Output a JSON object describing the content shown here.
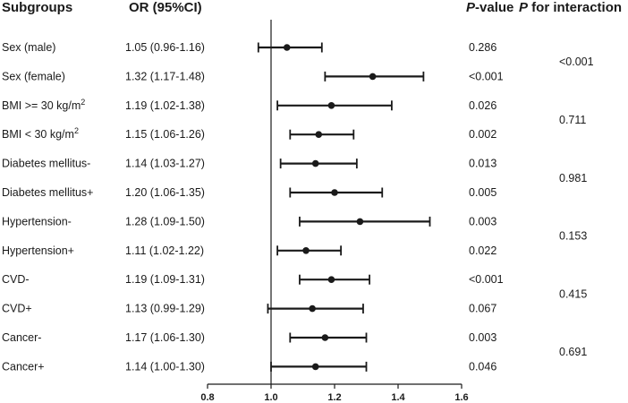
{
  "headers": {
    "subgroups": "Subgroups",
    "or": "OR (95%CI)",
    "pvalue_italic": "P",
    "pvalue_rest": "-value",
    "interaction_italic": "P",
    "interaction_rest": " for interaction"
  },
  "interaction_values": [
    "<0.001",
    "0.711",
    "0.981",
    "0.153",
    "0.415",
    "0.691"
  ],
  "colors": {
    "ink": "#1a1a1a",
    "background": "#ffffff"
  },
  "chart_data": {
    "type": "forest",
    "reference_line": 1.0,
    "xlim": [
      0.8,
      1.6
    ],
    "xticks": [
      "0.8",
      "1.0",
      "1.2",
      "1.4",
      "1.6"
    ],
    "xtick_values": [
      0.8,
      1.0,
      1.2,
      1.4,
      1.6
    ],
    "rows": [
      {
        "label": "Sex (male)",
        "sup": "",
        "ci_text": "1.05 (0.96-1.16)",
        "or": 1.05,
        "lo": 0.96,
        "hi": 1.16,
        "p": "0.286"
      },
      {
        "label": "Sex (female)",
        "sup": "",
        "ci_text": "1.32 (1.17-1.48)",
        "or": 1.32,
        "lo": 1.17,
        "hi": 1.48,
        "p": "<0.001"
      },
      {
        "label": "BMI >= 30 kg/m",
        "sup": "2",
        "ci_text": "1.19 (1.02-1.38)",
        "or": 1.19,
        "lo": 1.02,
        "hi": 1.38,
        "p": "0.026"
      },
      {
        "label": "BMI < 30 kg/m",
        "sup": "2",
        "ci_text": "1.15 (1.06-1.26)",
        "or": 1.15,
        "lo": 1.06,
        "hi": 1.26,
        "p": "0.002"
      },
      {
        "label": "Diabetes mellitus-",
        "sup": "",
        "ci_text": "1.14 (1.03-1.27)",
        "or": 1.14,
        "lo": 1.03,
        "hi": 1.27,
        "p": "0.013"
      },
      {
        "label": "Diabetes mellitus+",
        "sup": "",
        "ci_text": "1.20 (1.06-1.35)",
        "or": 1.2,
        "lo": 1.06,
        "hi": 1.35,
        "p": "0.005"
      },
      {
        "label": "Hypertension-",
        "sup": "",
        "ci_text": "1.28 (1.09-1.50)",
        "or": 1.28,
        "lo": 1.09,
        "hi": 1.5,
        "p": "0.003"
      },
      {
        "label": "Hypertension+",
        "sup": "",
        "ci_text": "1.11 (1.02-1.22)",
        "or": 1.11,
        "lo": 1.02,
        "hi": 1.22,
        "p": "0.022"
      },
      {
        "label": "CVD-",
        "sup": "",
        "ci_text": "1.19 (1.09-1.31)",
        "or": 1.19,
        "lo": 1.09,
        "hi": 1.31,
        "p": "<0.001"
      },
      {
        "label": "CVD+",
        "sup": "",
        "ci_text": "1.13 (0.99-1.29)",
        "or": 1.13,
        "lo": 0.99,
        "hi": 1.29,
        "p": "0.067"
      },
      {
        "label": "Cancer-",
        "sup": "",
        "ci_text": "1.17 (1.06-1.30)",
        "or": 1.17,
        "lo": 1.06,
        "hi": 1.3,
        "p": "0.003"
      },
      {
        "label": "Cancer+",
        "sup": "",
        "ci_text": "1.14 (1.00-1.30)",
        "or": 1.14,
        "lo": 1.0,
        "hi": 1.3,
        "p": "0.046"
      }
    ]
  }
}
